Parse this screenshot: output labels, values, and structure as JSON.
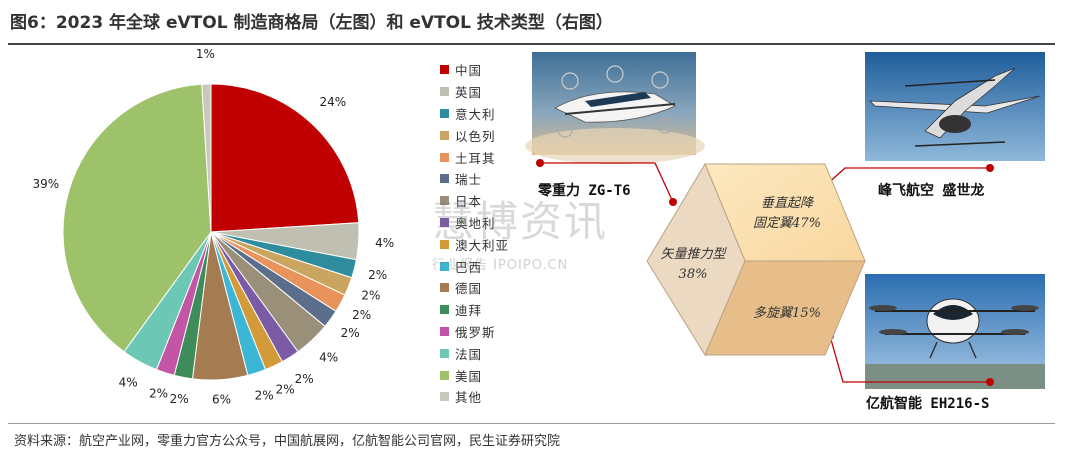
{
  "title": "图6：2023 年全球 eVTOL 制造商格局（左图）和 eVTOL 技术类型（右图）",
  "source": "资料来源：航空产业网，零重力官方公众号，中国航展网，亿航智能公司官网，民生证券研究院",
  "watermark": {
    "main": "慧博资讯",
    "sub": "行业报告 IPOIPO.CN"
  },
  "chart_data": [
    {
      "type": "pie",
      "start_angle_deg": 0,
      "direction": "clockwise",
      "slices": [
        {
          "label": "中国",
          "value": 24,
          "display": "24%",
          "color": "#c00000"
        },
        {
          "label": "英国",
          "value": 4,
          "display": "4%",
          "color": "#bfbfb2"
        },
        {
          "label": "意大利",
          "value": 2,
          "display": "2%",
          "color": "#2f8c9c"
        },
        {
          "label": "以色列",
          "value": 2,
          "display": "2%",
          "color": "#c9a560"
        },
        {
          "label": "土耳其",
          "value": 2,
          "display": "2%",
          "color": "#e8935a"
        },
        {
          "label": "瑞士",
          "value": 2,
          "display": "2%",
          "color": "#5b6e8c"
        },
        {
          "label": "日本",
          "value": 4,
          "display": "4%",
          "color": "#9a8f79"
        },
        {
          "label": "奥地利",
          "value": 2,
          "display": "2%",
          "color": "#7b5aa6"
        },
        {
          "label": "澳大利亚",
          "value": 2,
          "display": "2%",
          "color": "#d39a3a"
        },
        {
          "label": "巴西",
          "value": 2,
          "display": "2%",
          "color": "#3bb6d4"
        },
        {
          "label": "德国",
          "value": 6,
          "display": "6%",
          "color": "#a57c52"
        },
        {
          "label": "迪拜",
          "value": 2,
          "display": "2%",
          "color": "#3d8c5a"
        },
        {
          "label": "俄罗斯",
          "value": 2,
          "display": "2%",
          "color": "#c255a6"
        },
        {
          "label": "法国",
          "value": 4,
          "display": "4%",
          "color": "#6cc7b4"
        },
        {
          "label": "美国",
          "value": 39,
          "display": "39%",
          "color": "#9dc26a"
        },
        {
          "label": "其他",
          "value": 1,
          "display": "1%",
          "color": "#c8c8bc"
        }
      ]
    },
    {
      "type": "table",
      "kind": "cube",
      "faces": [
        {
          "label": "垂直起降",
          "line2": "固定翼47%",
          "color": "#fbe2b4"
        },
        {
          "label": "矢量推力型",
          "line2": "38%",
          "color": "#ecd9c2"
        },
        {
          "label": "多旋翼15%",
          "line2": "",
          "color": "#e7be89"
        }
      ],
      "aircraft": [
        {
          "name": "零重力 ZG-T6"
        },
        {
          "name": "峰飞航空   盛世龙"
        },
        {
          "name": "亿航智能 EH216-S"
        }
      ]
    }
  ]
}
